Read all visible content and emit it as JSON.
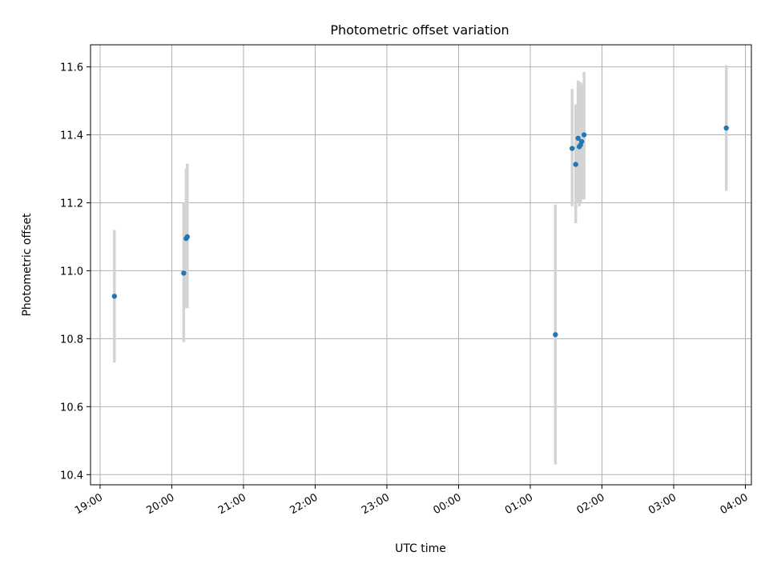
{
  "chart_data": {
    "type": "scatter",
    "title": "Photometric offset variation",
    "xlabel": "UTC time",
    "ylabel": "Photometric offset",
    "xlim": [
      "18:52",
      "04:05"
    ],
    "ylim": [
      10.37,
      11.665
    ],
    "x_axis_type": "time",
    "xticks": [
      "19:00",
      "20:00",
      "21:00",
      "22:00",
      "23:00",
      "00:00",
      "01:00",
      "02:00",
      "03:00",
      "04:00"
    ],
    "yticks": [
      "10.4",
      "10.6",
      "10.8",
      "11.0",
      "11.2",
      "11.4",
      "11.6"
    ],
    "grid": true,
    "legend": null,
    "point_color": "#1f77b4",
    "errorbar_color": "#d3d3d3",
    "points": [
      {
        "x": "19:12",
        "y": 10.925,
        "yerr_low": 10.73,
        "yerr_high": 11.12
      },
      {
        "x": "20:10",
        "y": 10.993,
        "yerr_low": 10.79,
        "yerr_high": 11.2
      },
      {
        "x": "20:12",
        "y": 11.095,
        "yerr_low": 10.89,
        "yerr_high": 11.3
      },
      {
        "x": "20:13",
        "y": 11.1,
        "yerr_low": 10.89,
        "yerr_high": 11.315
      },
      {
        "x": "01:21",
        "y": 10.812,
        "yerr_low": 10.43,
        "yerr_high": 11.195
      },
      {
        "x": "01:35",
        "y": 11.36,
        "yerr_low": 11.19,
        "yerr_high": 11.535
      },
      {
        "x": "01:38",
        "y": 11.313,
        "yerr_low": 11.14,
        "yerr_high": 11.49
      },
      {
        "x": "01:40",
        "y": 11.39,
        "yerr_low": 11.2,
        "yerr_high": 11.56
      },
      {
        "x": "01:41",
        "y": 11.365,
        "yerr_low": 11.19,
        "yerr_high": 11.54
      },
      {
        "x": "01:42",
        "y": 11.37,
        "yerr_low": 11.2,
        "yerr_high": 11.555
      },
      {
        "x": "01:43",
        "y": 11.38,
        "yerr_low": 11.21,
        "yerr_high": 11.55
      },
      {
        "x": "01:45",
        "y": 11.4,
        "yerr_low": 11.21,
        "yerr_high": 11.585
      },
      {
        "x": "03:44",
        "y": 11.42,
        "yerr_low": 11.235,
        "yerr_high": 11.605
      }
    ]
  }
}
